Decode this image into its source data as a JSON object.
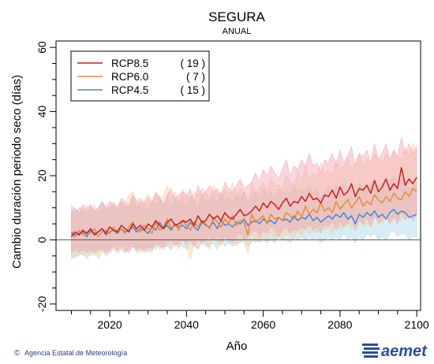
{
  "header": {
    "title": "SEGURA",
    "subtitle": "ANUAL"
  },
  "footer": {
    "credit": "Agencia Estatal de Meteorología",
    "copyright_symbol": "©",
    "brand": "aemet"
  },
  "colors": {
    "rcp85": "#cc1f1f",
    "rcp60": "#ec8a35",
    "rcp45": "#3f8ad8",
    "rcp85_band": "#f2a5b5",
    "rcp60_band": "#f7cf9a",
    "rcp45_band": "#a9d5ea",
    "brand": "#2a4fa0"
  },
  "chart_data": {
    "type": "line",
    "title": "SEGURA",
    "subtitle": "ANUAL",
    "xlabel": "Año",
    "ylabel": "Cambio duración periodo seco (días)",
    "xlim": [
      2006,
      2101
    ],
    "ylim": [
      -22,
      62
    ],
    "xticks": [
      2020,
      2040,
      2060,
      2080,
      2100
    ],
    "yticks": [
      -20,
      0,
      20,
      40,
      60
    ],
    "reference_line": 0,
    "legend_position": "top-left",
    "x": [
      2010,
      2011,
      2012,
      2013,
      2014,
      2015,
      2016,
      2017,
      2018,
      2019,
      2020,
      2021,
      2022,
      2023,
      2024,
      2025,
      2026,
      2027,
      2028,
      2029,
      2030,
      2031,
      2032,
      2033,
      2034,
      2035,
      2036,
      2037,
      2038,
      2039,
      2040,
      2041,
      2042,
      2043,
      2044,
      2045,
      2046,
      2047,
      2048,
      2049,
      2050,
      2051,
      2052,
      2053,
      2054,
      2055,
      2056,
      2057,
      2058,
      2059,
      2060,
      2061,
      2062,
      2063,
      2064,
      2065,
      2066,
      2067,
      2068,
      2069,
      2070,
      2071,
      2072,
      2073,
      2074,
      2075,
      2076,
      2077,
      2078,
      2079,
      2080,
      2081,
      2082,
      2083,
      2084,
      2085,
      2086,
      2087,
      2088,
      2089,
      2090,
      2091,
      2092,
      2093,
      2094,
      2095,
      2096,
      2097,
      2098,
      2099,
      2100
    ],
    "series": [
      {
        "name": "RCP8.5",
        "count": "( 19 )",
        "values": [
          1.0,
          2.5,
          1.5,
          3.0,
          2.0,
          3.5,
          1.5,
          2.5,
          3.5,
          2.0,
          4.0,
          3.0,
          2.5,
          4.5,
          3.5,
          2.5,
          5.0,
          3.5,
          4.5,
          3.0,
          5.0,
          4.0,
          6.0,
          4.5,
          3.5,
          5.5,
          6.5,
          4.5,
          5.0,
          6.0,
          5.5,
          6.5,
          4.5,
          7.5,
          5.5,
          6.0,
          8.0,
          6.5,
          7.5,
          6.0,
          8.5,
          7.0,
          6.5,
          8.0,
          9.5,
          7.5,
          8.0,
          9.0,
          10.5,
          9.0,
          11.5,
          10.0,
          12.0,
          11.0,
          9.5,
          11.5,
          13.0,
          10.5,
          12.0,
          11.5,
          13.5,
          12.0,
          14.5,
          12.5,
          13.0,
          11.5,
          14.0,
          13.5,
          15.5,
          13.0,
          16.5,
          14.0,
          15.0,
          17.5,
          13.5,
          16.0,
          15.5,
          17.0,
          14.5,
          18.5,
          15.0,
          16.5,
          19.0,
          15.5,
          17.5,
          16.0,
          22.5,
          17.0,
          19.0,
          17.5,
          19.5
        ],
        "band_low": [
          -4,
          -3,
          -4,
          -3,
          -4,
          -3,
          -4,
          -3,
          -3,
          -4,
          -3,
          -2,
          -3,
          -2,
          -3,
          -4,
          -2,
          -3,
          -2,
          -4,
          -2,
          -3,
          -1,
          -2,
          -3,
          -1,
          0,
          -2,
          -1,
          0,
          -1,
          0,
          -2,
          1,
          -1,
          0,
          1,
          0,
          1,
          -1,
          1,
          0,
          -1,
          1,
          2,
          0,
          1,
          2,
          3,
          1,
          3,
          2,
          4,
          3,
          1,
          3,
          4,
          2,
          3,
          3,
          4,
          3,
          5,
          3,
          4,
          2,
          5,
          4,
          6,
          3,
          6,
          4,
          5,
          7,
          3,
          6,
          5,
          7,
          4,
          8,
          5,
          6,
          8,
          5,
          7,
          5,
          9,
          6,
          8,
          6,
          8
        ],
        "band_high": [
          9,
          10,
          8,
          11,
          10,
          11,
          9,
          10,
          12,
          10,
          12,
          11,
          10,
          13,
          12,
          10,
          14,
          12,
          13,
          11,
          14,
          12,
          15,
          13,
          11,
          14,
          16,
          13,
          14,
          15,
          14,
          16,
          12,
          17,
          14,
          15,
          17,
          15,
          16,
          14,
          18,
          16,
          15,
          17,
          19,
          16,
          17,
          18,
          21,
          18,
          22,
          20,
          23,
          21,
          19,
          22,
          25,
          20,
          23,
          22,
          25,
          23,
          27,
          23,
          24,
          21,
          25,
          24,
          27,
          23,
          28,
          24,
          26,
          29,
          23,
          27,
          26,
          28,
          24,
          30,
          25,
          27,
          30,
          25,
          28,
          26,
          32,
          27,
          30,
          27,
          29
        ]
      },
      {
        "name": "RCP6.0",
        "count": "( 7 )",
        "values": [
          2.0,
          1.0,
          3.0,
          1.5,
          2.5,
          2.0,
          3.5,
          1.0,
          2.5,
          3.0,
          2.0,
          4.0,
          2.5,
          3.5,
          2.0,
          4.0,
          5.5,
          3.0,
          2.5,
          4.5,
          3.5,
          2.0,
          5.5,
          3.0,
          4.0,
          6.5,
          3.5,
          5.0,
          3.0,
          6.0,
          4.5,
          3.0,
          5.5,
          4.0,
          6.0,
          5.0,
          3.5,
          7.0,
          5.5,
          4.0,
          6.5,
          5.0,
          7.5,
          4.5,
          6.0,
          5.5,
          1.5,
          8.0,
          5.5,
          6.5,
          7.5,
          5.0,
          8.0,
          6.5,
          7.0,
          6.0,
          8.5,
          7.5,
          6.5,
          9.0,
          7.0,
          10.5,
          8.0,
          9.5,
          8.5,
          11.5,
          9.0,
          10.0,
          8.5,
          12.0,
          9.5,
          11.0,
          12.5,
          10.0,
          11.5,
          13.5,
          10.5,
          12.0,
          11.0,
          14.0,
          12.5,
          11.5,
          13.5,
          12.0,
          14.5,
          13.0,
          12.5,
          15.0,
          13.5,
          16.0,
          15.0
        ],
        "band_low": [
          -5,
          -6,
          -4,
          -5,
          -4,
          -5,
          -3,
          -6,
          -4,
          -3,
          -4,
          -2,
          -4,
          -3,
          -4,
          -2,
          -1,
          -3,
          -4,
          -2,
          -3,
          -4,
          -1,
          -3,
          -2,
          0,
          -3,
          -1,
          -3,
          0,
          -2,
          -6,
          -1,
          -3,
          0,
          -1,
          -3,
          1,
          -1,
          -2,
          1,
          -1,
          1,
          -2,
          0,
          -1,
          -4,
          2,
          -1,
          0,
          1,
          -1,
          2,
          0,
          1,
          0,
          2,
          1,
          0,
          3,
          1,
          4,
          2,
          3,
          2,
          5,
          3,
          4,
          2,
          5,
          3,
          4,
          6,
          3,
          5,
          7,
          4,
          5,
          4,
          7,
          6,
          5,
          7,
          5,
          8,
          6,
          6,
          8,
          7,
          9,
          8
        ],
        "band_high": [
          9,
          8,
          10,
          9,
          10,
          9,
          11,
          8,
          10,
          11,
          10,
          12,
          10,
          12,
          11,
          14,
          15,
          12,
          11,
          13,
          13,
          11,
          15,
          12,
          14,
          17,
          13,
          15,
          12,
          16,
          14,
          12,
          15,
          14,
          16,
          15,
          13,
          17,
          15,
          13,
          16,
          14,
          18,
          14,
          16,
          15,
          11,
          18,
          15,
          16,
          18,
          15,
          19,
          17,
          17,
          16,
          20,
          18,
          17,
          21,
          18,
          23,
          19,
          21,
          20,
          24,
          21,
          22,
          20,
          25,
          22,
          23,
          26,
          22,
          24,
          27,
          23,
          25,
          24,
          27,
          25,
          24,
          27,
          25,
          28,
          26,
          25,
          29,
          26,
          30,
          28
        ]
      },
      {
        "name": "RCP4.5",
        "count": "( 15 )",
        "values": [
          2.5,
          1.5,
          2.0,
          2.5,
          1.0,
          3.0,
          2.0,
          2.5,
          3.5,
          1.5,
          2.5,
          3.0,
          2.0,
          3.5,
          2.5,
          3.0,
          4.0,
          2.5,
          3.5,
          3.0,
          2.0,
          4.0,
          3.0,
          5.5,
          3.5,
          4.5,
          3.0,
          5.0,
          4.0,
          4.5,
          3.5,
          5.5,
          4.0,
          3.0,
          5.5,
          4.5,
          4.0,
          5.5,
          3.5,
          6.0,
          4.5,
          5.0,
          4.0,
          5.5,
          5.0,
          6.5,
          4.5,
          5.5,
          6.0,
          5.0,
          6.5,
          5.5,
          6.0,
          5.0,
          7.0,
          6.0,
          6.5,
          5.5,
          7.5,
          6.0,
          7.0,
          6.5,
          8.0,
          6.0,
          7.0,
          5.5,
          6.5,
          7.5,
          6.5,
          8.0,
          7.0,
          8.5,
          6.5,
          7.5,
          5.0,
          8.0,
          7.0,
          8.5,
          7.5,
          9.0,
          7.0,
          8.0,
          6.5,
          8.5,
          9.5,
          8.0,
          9.0,
          8.5,
          7.0,
          7.5,
          8.0
        ],
        "band_low": [
          -6,
          -5,
          -5,
          -4,
          -6,
          -4,
          -5,
          -4,
          -3,
          -5,
          -4,
          -3,
          -4,
          -3,
          -4,
          -3,
          -2,
          -4,
          -3,
          -3,
          -4,
          -2,
          -3,
          -1,
          -2,
          -2,
          -3,
          -1,
          -2,
          -2,
          -3,
          -1,
          -2,
          -3,
          -1,
          -2,
          -2,
          -1,
          -3,
          0,
          -2,
          -1,
          -2,
          -1,
          -1,
          0,
          -2,
          -1,
          0,
          -1,
          0,
          -1,
          0,
          -1,
          1,
          0,
          0,
          -1,
          1,
          0,
          1,
          0,
          1,
          0,
          1,
          -1,
          0,
          1,
          0,
          1,
          0,
          2,
          0,
          1,
          -1,
          1,
          0,
          2,
          1,
          2,
          0,
          1,
          0,
          2,
          3,
          1,
          2,
          2,
          0,
          1,
          1
        ],
        "band_high": [
          11,
          9,
          10,
          10,
          8,
          11,
          9,
          10,
          12,
          9,
          10,
          11,
          9,
          12,
          10,
          11,
          13,
          10,
          12,
          11,
          9,
          12,
          11,
          14,
          11,
          13,
          10,
          13,
          12,
          12,
          11,
          14,
          12,
          10,
          14,
          12,
          12,
          14,
          11,
          15,
          12,
          13,
          12,
          14,
          13,
          15,
          12,
          14,
          15,
          13,
          16,
          14,
          15,
          13,
          16,
          15,
          15,
          14,
          17,
          15,
          16,
          15,
          17,
          14,
          16,
          13,
          15,
          17,
          15,
          17,
          16,
          18,
          15,
          17,
          13,
          18,
          16,
          18,
          17,
          19,
          16,
          18,
          15,
          18,
          20,
          18,
          19,
          18,
          16,
          17,
          17
        ]
      }
    ]
  }
}
